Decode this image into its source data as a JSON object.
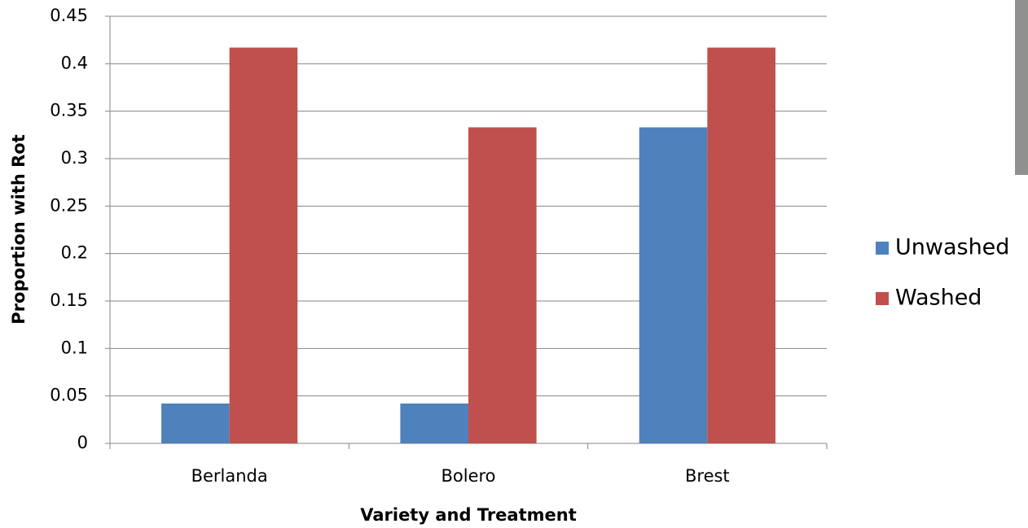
{
  "chart_data": {
    "type": "bar",
    "x_label": "Variety and Treatment",
    "y_label": "Proportion with Rot",
    "categories": [
      "Berlanda",
      "Bolero",
      "Brest"
    ],
    "series": [
      {
        "name": "Unwashed",
        "color": "#4f81bd",
        "values": [
          0.042,
          0.042,
          0.333
        ]
      },
      {
        "name": "Washed",
        "color": "#c0504d",
        "values": [
          0.417,
          0.333,
          0.417
        ]
      }
    ],
    "ylim": [
      0,
      0.45
    ],
    "yticks": [
      0,
      0.05,
      0.1,
      0.15,
      0.2,
      0.25,
      0.3,
      0.35,
      0.4,
      0.45
    ],
    "grid": true,
    "legend": "right"
  }
}
